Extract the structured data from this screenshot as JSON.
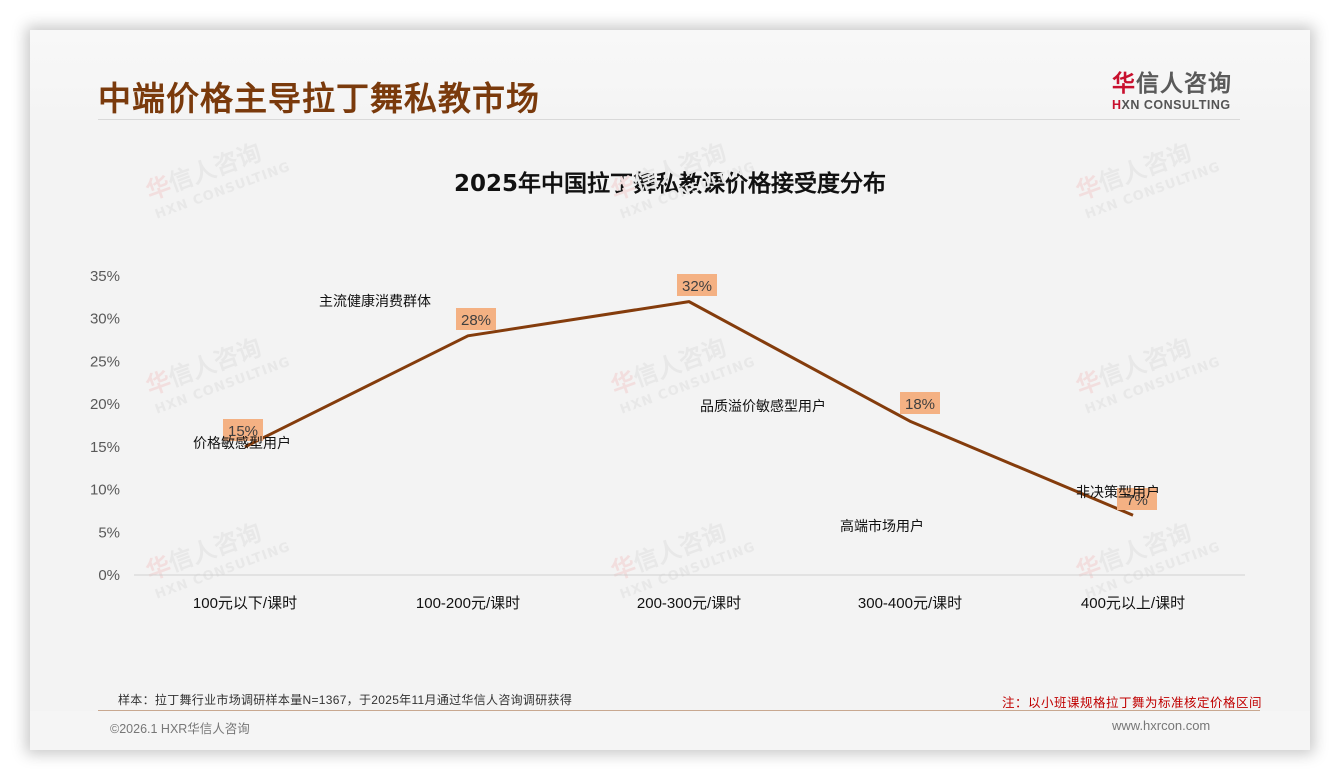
{
  "header": {
    "title": "中端价格主导拉丁舞私教市场",
    "logo_cn_first": "华",
    "logo_cn_rest": "信人咨询",
    "logo_en_first": "H",
    "logo_en_rest": "XN CONSULTING"
  },
  "watermark": {
    "cn": "华信人咨询",
    "en": "HXN CONSULTING"
  },
  "chart_data": {
    "type": "line",
    "title": "2025年中国拉丁舞私教课价格接受度分布",
    "categories": [
      "100元以下/课时",
      "100-200元/课时",
      "200-300元/课时",
      "300-400元/课时",
      "400元以上/课时"
    ],
    "values": [
      15,
      28,
      32,
      18,
      7
    ],
    "data_labels": [
      "15%",
      "28%",
      "32%",
      "18%",
      "7%"
    ],
    "segment_labels": [
      "价格敏感型用户",
      "主流健康消费群体",
      "品质溢价敏感型用户",
      "高端市场用户",
      "非决策型用户"
    ],
    "xlabel": "",
    "ylabel": "",
    "ylim": [
      0,
      35
    ],
    "yticks": [
      "0%",
      "5%",
      "10%",
      "15%",
      "20%",
      "25%",
      "30%",
      "35%"
    ],
    "grid": false,
    "legend": "none",
    "line_color": "#843c0c",
    "label_bg_color": "#f4b183"
  },
  "footer": {
    "sample_note": "样本：拉丁舞行业市场调研样本量N=1367，于2025年11月通过华信人咨询调研获得",
    "price_note": "注：以小班课规格拉丁舞为标准核定价格区间",
    "copyright": "©2026.1 HXR华信人咨询",
    "website": "www.hxrcon.com"
  }
}
